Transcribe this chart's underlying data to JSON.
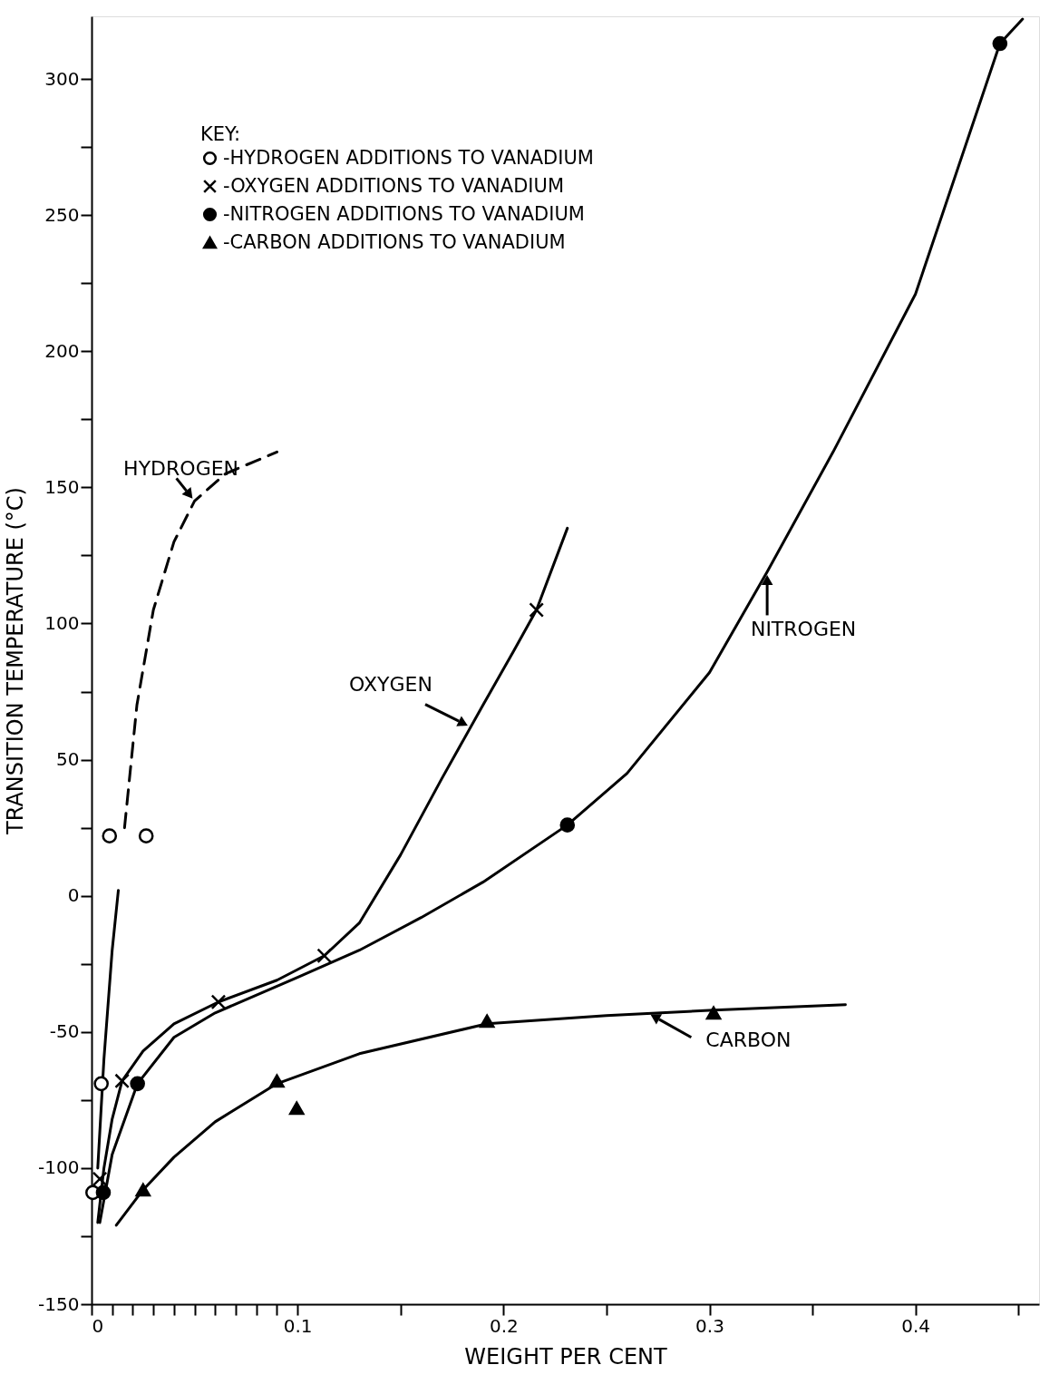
{
  "chart_data": {
    "type": "scatter",
    "xlabel": "WEIGHT PER CENT",
    "ylabel": "TRANSITION TEMPERATURE (°C)",
    "legend_title": "KEY:",
    "xlim": [
      0,
      0.46
    ],
    "ylim": [
      -150,
      323
    ],
    "xticks": [
      0,
      {
        "value": 0.01,
        "label": null
      },
      {
        "value": 0.02,
        "label": null
      },
      {
        "value": 0.03,
        "label": null
      },
      {
        "value": 0.04,
        "label": null
      },
      {
        "value": 0.05,
        "label": null
      },
      {
        "value": 0.06,
        "label": null
      },
      {
        "value": 0.07,
        "label": null
      },
      {
        "value": 0.08,
        "label": null
      },
      {
        "value": 0.09,
        "label": null
      },
      0.1,
      {
        "value": 0.15,
        "label": null
      },
      0.2,
      {
        "value": 0.25,
        "label": null
      },
      0.3,
      {
        "value": 0.35,
        "label": null
      },
      0.4,
      {
        "value": 0.45,
        "label": null
      }
    ],
    "yticks": [
      -150,
      {
        "value": -125,
        "label": null
      },
      -100,
      {
        "value": -75,
        "label": null
      },
      -50,
      {
        "value": -25,
        "label": null
      },
      0,
      {
        "value": 25,
        "label": null
      },
      50,
      {
        "value": 75,
        "label": null
      },
      100,
      {
        "value": 125,
        "label": null
      },
      150,
      {
        "value": 175,
        "label": null
      },
      200,
      {
        "value": 225,
        "label": null
      },
      250,
      {
        "value": 275,
        "label": null
      },
      300
    ],
    "grid": false,
    "legend": "top left",
    "series": [
      {
        "name": "-HYDROGEN ADDITIONS TO VANADIUM",
        "marker": "circle",
        "color": "#ffffff",
        "x": [
          0.0006,
          0.0047,
          0.0087,
          0.0265
        ],
        "values": [
          -109,
          -69,
          22,
          22
        ]
      },
      {
        "name": "-OXYGEN ADDITIONS TO VANADIUM",
        "marker": "cross",
        "color": "#000000",
        "x": [
          0.004,
          0.0148,
          0.0616,
          0.113,
          0.216
        ],
        "values": [
          -104,
          -68,
          -39,
          -22,
          105
        ]
      },
      {
        "name": "-NITROGEN ADDITIONS TO VANADIUM",
        "marker": "circle",
        "color": "#000000",
        "x": [
          0.0057,
          0.0223,
          0.231,
          0.441
        ],
        "values": [
          -109,
          -69,
          26,
          313
        ]
      },
      {
        "name": "-CARBON ADDITIONS TO VANADIUM",
        "marker": "triangle",
        "color": "#000000",
        "x": [
          0.025,
          0.09,
          0.0996,
          0.192,
          0.302
        ],
        "values": [
          -108,
          -68,
          -78,
          -46,
          -43
        ]
      },
      {
        "type": "line",
        "line_style": "solid",
        "color": "#000000",
        "x": [
          0.003,
          0.006,
          0.01,
          0.013
        ],
        "values": [
          -100,
          -60,
          -20,
          2
        ]
      },
      {
        "type": "line",
        "line_style": "dashed",
        "color": "#000000",
        "x": [
          0.016,
          0.018,
          0.022,
          0.03,
          0.04,
          0.05,
          0.065,
          0.09
        ],
        "values": [
          25,
          40,
          70,
          105,
          130,
          145,
          155,
          163
        ]
      },
      {
        "type": "line",
        "line_style": "solid",
        "color": "#000000",
        "x": [
          0.003,
          0.006,
          0.01,
          0.0148,
          0.025,
          0.04,
          0.0616,
          0.09,
          0.113,
          0.13,
          0.15,
          0.17,
          0.19,
          0.205,
          0.216,
          0.231
        ],
        "values": [
          -120,
          -100,
          -82,
          -68,
          -57,
          -47,
          -39,
          -31,
          -22,
          -10,
          15,
          43,
          70,
          90,
          105,
          135
        ]
      },
      {
        "type": "line",
        "line_style": "solid",
        "color": "#000000",
        "x": [
          0.004,
          0.01,
          0.0223,
          0.04,
          0.06,
          0.1,
          0.13,
          0.16,
          0.19,
          0.231,
          0.26,
          0.3,
          0.328,
          0.36,
          0.4,
          0.441,
          0.452
        ],
        "values": [
          -120,
          -95,
          -69,
          -52,
          -43,
          -30,
          -20,
          -8,
          5,
          26,
          45,
          82,
          119,
          163,
          221,
          313,
          322
        ]
      },
      {
        "type": "line",
        "line_style": "solid",
        "color": "#000000",
        "x": [
          0.012,
          0.025,
          0.04,
          0.06,
          0.09,
          0.13,
          0.192,
          0.25,
          0.302,
          0.366
        ],
        "values": [
          -121,
          -108,
          -96,
          -83,
          -69,
          -58,
          -47,
          -44,
          -42,
          -40
        ]
      }
    ],
    "annotations": [
      {
        "text": "HYDROGEN",
        "x": 0.05,
        "y": 145
      },
      {
        "text": "OXYGEN",
        "x": 0.184,
        "y": 62
      },
      {
        "text": "NITROGEN",
        "x": 0.328,
        "y": 119
      },
      {
        "text": "CARBON",
        "x": 0.27,
        "y": -43
      }
    ]
  }
}
